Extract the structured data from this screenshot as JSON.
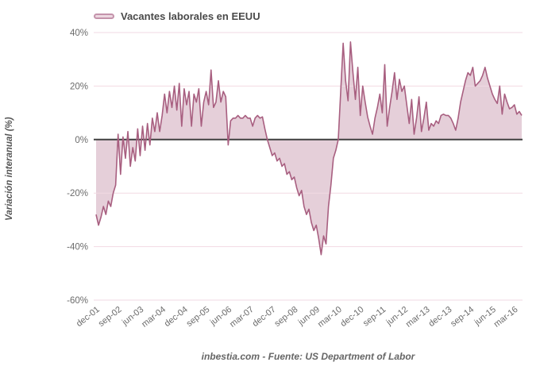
{
  "legend": {
    "label": "Vacantes laborales en EEUU"
  },
  "y_axis_title": "Variación interanual (%)",
  "footer_text": "inbestia.com - Fuente: US Department of Labor",
  "colors": {
    "series_line": "#a85f80",
    "series_fill": "rgba(168,95,128,0.30)",
    "grid_line": "#f2dae3",
    "zero_line": "#404040",
    "tick_label": "#6b6b6b",
    "background": "#ffffff"
  },
  "chart_data": {
    "type": "area",
    "title": "Vacantes laborales en EEUU",
    "ylabel": "Variación interanual (%)",
    "xlabel": "",
    "frequency": "monthly",
    "start": "2001-12",
    "end": "2016-06",
    "ylim": [
      -60,
      40
    ],
    "grid": true,
    "legend_position": "top-left",
    "y_ticks": [
      40,
      20,
      0,
      -20,
      -40,
      -60
    ],
    "y_tick_labels": [
      "40%",
      "20%",
      "0%",
      "-20%",
      "-40%",
      "-60%"
    ],
    "x_tick_labels": [
      "dec-01",
      "sep-02",
      "jun-03",
      "mar-04",
      "dec-04",
      "sep-05",
      "jun-06",
      "mar-07",
      "dec-07",
      "sep-08",
      "jun-09",
      "mar-10",
      "dec-10",
      "sep-11",
      "jun-12",
      "mar-13",
      "dec-13",
      "sep-14",
      "jun-15",
      "mar-16"
    ],
    "x_tick_every": 9,
    "series": [
      {
        "name": "Vacantes laborales en EEUU",
        "values": [
          -28,
          -32,
          -29,
          -25,
          -28,
          -23,
          -25,
          -20,
          -17,
          2,
          -13,
          1,
          -7,
          3,
          -10,
          -3,
          -8,
          4,
          -6,
          5,
          -4,
          6,
          -2,
          8,
          3,
          10,
          3,
          9,
          17,
          10,
          18,
          12,
          20,
          11,
          21,
          5,
          19,
          13,
          18,
          5,
          17,
          14,
          19,
          5,
          14,
          18,
          13,
          26,
          12,
          14,
          22,
          14,
          18,
          16,
          -2,
          7,
          8,
          8,
          9,
          8,
          8,
          9,
          8,
          8,
          5,
          8,
          9,
          8,
          8.5,
          4,
          0,
          -3,
          -6,
          -5,
          -8,
          -7,
          -10,
          -9,
          -13,
          -12,
          -15,
          -14,
          -18,
          -21,
          -19,
          -25,
          -28,
          -26,
          -31,
          -34,
          -32,
          -37,
          -43,
          -36,
          -39,
          -25,
          -17,
          -7,
          -4,
          0,
          18,
          36,
          22,
          14.5,
          36.5,
          25,
          15,
          27,
          9,
          20,
          14,
          8.5,
          5,
          2,
          8,
          12,
          17,
          10,
          28,
          5,
          12,
          18,
          25,
          15,
          22.5,
          18,
          20,
          13,
          6,
          15,
          2,
          8,
          16,
          3,
          8,
          14,
          3.5,
          6,
          5,
          7,
          6,
          9,
          9.5,
          9,
          9,
          8,
          6,
          3.5,
          8,
          14,
          18,
          22,
          25,
          24,
          27,
          20,
          21,
          22,
          24,
          27,
          23,
          20,
          17,
          15,
          13.5,
          20,
          9.5,
          17,
          14,
          11.5,
          12,
          13,
          9.5,
          10.5,
          9
        ]
      }
    ]
  }
}
